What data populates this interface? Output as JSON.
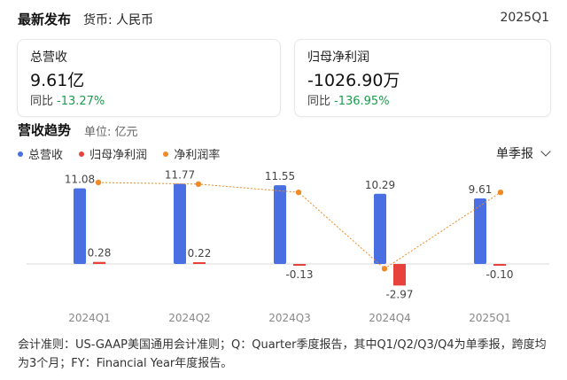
{
  "header": {
    "title": "最新发布",
    "currency": "货币: 人民币",
    "period": "2025Q1"
  },
  "cards": [
    {
      "label": "总营收",
      "value": "9.61亿",
      "yoy_label": "同比",
      "yoy_value": "-13.27%"
    },
    {
      "label": "归母净利润",
      "value": "-1026.90万",
      "yoy_label": "同比",
      "yoy_value": "-136.95%"
    }
  ],
  "section": {
    "title": "营收趋势",
    "unit": "单位: 亿元",
    "period_select": "单季报"
  },
  "legend": [
    {
      "label": "总营收",
      "color": "#4a6fe3"
    },
    {
      "label": "归母净利润",
      "color": "#e8423c"
    },
    {
      "label": "净利润率",
      "color": "#f08a24"
    }
  ],
  "chart_data": {
    "type": "bar",
    "categories": [
      "2024Q1",
      "2024Q2",
      "2024Q3",
      "2024Q4",
      "2025Q1"
    ],
    "series": [
      {
        "name": "总营收",
        "values": [
          11.08,
          11.77,
          11.55,
          10.29,
          9.61
        ],
        "labels": [
          "11.08",
          "11.77",
          "11.55",
          "10.29",
          "9.61"
        ],
        "color": "#4a6fe3"
      },
      {
        "name": "归母净利润",
        "values": [
          0.28,
          0.22,
          -0.13,
          -2.97,
          -0.1
        ],
        "labels": [
          "0.28",
          "0.22",
          "-0.13",
          "-2.97",
          "-0.10"
        ],
        "color": "#e8423c"
      },
      {
        "name": "净利润率",
        "values": [
          2.5,
          1.9,
          -1.1,
          -28.9,
          -1.1
        ],
        "color": "#f08a24",
        "line": "dotted"
      }
    ],
    "grid": false,
    "legend_position": "top-left"
  },
  "footnote": "会计准则：US-GAAP美国通用会计准则；Q：Quarter季度报告，其中Q1/Q2/Q3/Q4为单季报，跨度均为3个月；FY：Financial Year年度报告。"
}
